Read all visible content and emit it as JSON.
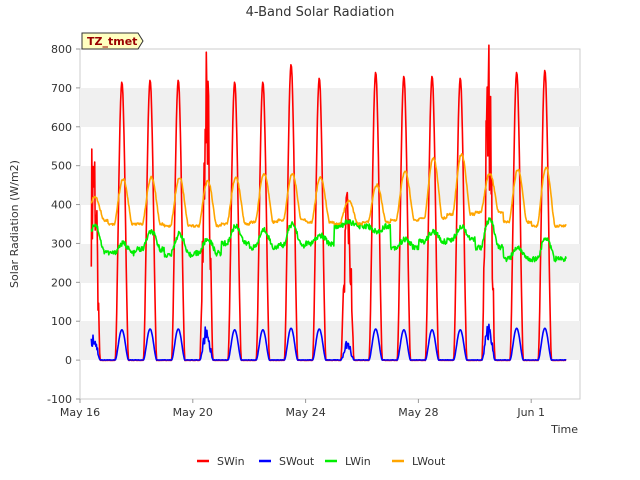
{
  "chart_data": {
    "type": "line",
    "title": "4-Band Solar Radiation",
    "xlabel": "Time",
    "ylabel": "Solar Radiation (W/m2)",
    "ylim": [
      -100,
      800
    ],
    "yticks": [
      -100,
      0,
      100,
      200,
      300,
      400,
      500,
      600,
      700,
      800
    ],
    "xlim": [
      "2024-05-16",
      "2024-06-03"
    ],
    "xticks": [
      {
        "label": "May 16",
        "day": 0
      },
      {
        "label": "May 20",
        "day": 4
      },
      {
        "label": "May 24",
        "day": 8
      },
      {
        "label": "May 28",
        "day": 12
      },
      {
        "label": "Jun 1",
        "day": 16
      }
    ],
    "grid": true,
    "legend_position": "bottom",
    "annotation": "TZ_tmet",
    "series": [
      {
        "name": "SWin",
        "color": "#ff0000",
        "daily_peak": [
          575,
          715,
          720,
          720,
          740,
          715,
          715,
          760,
          725,
          450,
          740,
          730,
          730,
          725,
          740,
          740,
          745
        ]
      },
      {
        "name": "SWout",
        "color": "#0000ff",
        "daily_peak": [
          65,
          78,
          80,
          80,
          80,
          78,
          78,
          82,
          80,
          45,
          80,
          78,
          78,
          78,
          82,
          82,
          82
        ]
      },
      {
        "name": "LWin",
        "color": "#00ee00",
        "daily_night": [
          280,
          275,
          285,
          270,
          275,
          300,
          290,
          295,
          300,
          345,
          345,
          290,
          305,
          310,
          290,
          260,
          260
        ],
        "daily_day": [
          350,
          300,
          330,
          325,
          310,
          345,
          335,
          350,
          320,
          355,
          330,
          310,
          330,
          345,
          360,
          290,
          315
        ]
      },
      {
        "name": "LWout",
        "color": "#ffa500",
        "daily_night": [
          360,
          350,
          350,
          345,
          345,
          350,
          355,
          360,
          355,
          350,
          355,
          360,
          365,
          375,
          380,
          355,
          345
        ],
        "daily_day": [
          420,
          465,
          470,
          470,
          460,
          470,
          480,
          480,
          470,
          410,
          450,
          485,
          520,
          530,
          480,
          490,
          495
        ]
      }
    ]
  }
}
